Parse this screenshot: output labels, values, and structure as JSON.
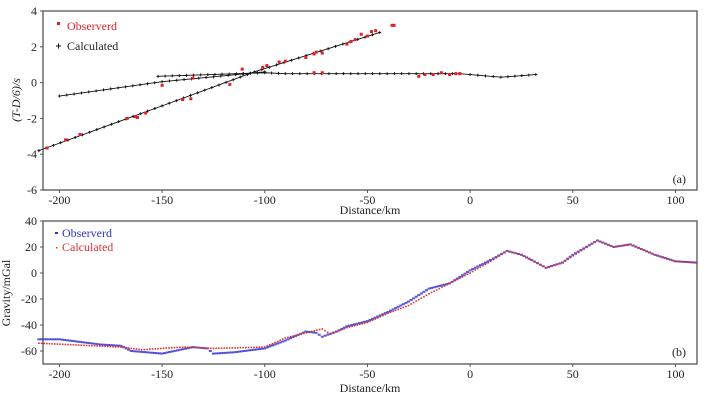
{
  "chart_data": [
    {
      "type": "scatter",
      "panel_label": "(a)",
      "xlabel": "Distance/km",
      "ylabel": "(T-D/6)/s",
      "xlim": [
        -208,
        110.5
      ],
      "ylim": [
        -6,
        4
      ],
      "xticks": [
        -200,
        -150,
        -100,
        -50,
        0,
        50,
        100
      ],
      "yticks": [
        -6,
        -4,
        -2,
        0,
        2,
        4
      ],
      "legend": {
        "placement": "top-left",
        "entries": [
          "Observerd",
          "Calculated"
        ]
      },
      "colors": {
        "observed": "#e0202a",
        "calculated": "#111111"
      },
      "observed": [
        [
          -206,
          -3.65
        ],
        [
          -197,
          -3.2
        ],
        [
          -190,
          -2.9
        ],
        [
          -167,
          -2.0
        ],
        [
          -163,
          -1.9
        ],
        [
          -162,
          -1.95
        ],
        [
          -158,
          -1.7
        ],
        [
          -150,
          -0.15
        ],
        [
          -140,
          -0.95
        ],
        [
          -136,
          -0.9
        ],
        [
          -135,
          0.25
        ],
        [
          -117,
          -0.1
        ],
        [
          -111,
          0.75
        ],
        [
          -101,
          0.85
        ],
        [
          -99,
          0.95
        ],
        [
          -93,
          1.15
        ],
        [
          -90,
          1.2
        ],
        [
          -80,
          1.4
        ],
        [
          -76,
          1.6
        ],
        [
          -75,
          1.7
        ],
        [
          -72,
          1.65
        ],
        [
          -76,
          0.55
        ],
        [
          -72,
          0.55
        ],
        [
          -60,
          2.15
        ],
        [
          -58,
          2.3
        ],
        [
          -56,
          2.4
        ],
        [
          -53,
          2.7
        ],
        [
          -50,
          2.6
        ],
        [
          -48,
          2.85
        ],
        [
          -46,
          2.9
        ],
        [
          -38,
          3.2
        ],
        [
          -37,
          3.2
        ],
        [
          -25,
          0.35
        ],
        [
          -22,
          0.45
        ],
        [
          -18,
          0.45
        ],
        [
          -14,
          0.55
        ],
        [
          -10,
          0.45
        ],
        [
          -7,
          0.5
        ],
        [
          -5,
          0.5
        ]
      ],
      "calculated": [
        {
          "name": "refraction-1",
          "points": [
            [
              -210,
              -3.8
            ],
            [
              -150,
              -1.3
            ],
            [
              -105,
              0.6
            ],
            [
              -44,
              2.8
            ]
          ]
        },
        {
          "name": "refraction-2",
          "points": [
            [
              -200,
              -0.75
            ],
            [
              -150,
              0.05
            ],
            [
              -100,
              0.6
            ]
          ]
        },
        {
          "name": "refraction-3",
          "points": [
            [
              -152,
              0.35
            ],
            [
              -100,
              0.55
            ],
            [
              -90,
              0.5
            ],
            [
              -5,
              0.5
            ],
            [
              0,
              0.45
            ],
            [
              15,
              0.3
            ],
            [
              32,
              0.45
            ]
          ]
        }
      ]
    },
    {
      "type": "line",
      "panel_label": "(b)",
      "xlabel": "Distance/km",
      "ylabel": "Gravity/mGal",
      "xlim": [
        -208,
        110.5
      ],
      "ylim": [
        -70,
        40
      ],
      "xticks": [
        -200,
        -150,
        -100,
        -50,
        0,
        50,
        100
      ],
      "yticks": [
        -60,
        -40,
        -20,
        0,
        20,
        40
      ],
      "legend": {
        "placement": "top-left",
        "entries": [
          "Observerd",
          "Calculated"
        ]
      },
      "colors": {
        "observed": "#3030d0",
        "calculated": "#e03030"
      },
      "series": [
        {
          "name": "Observerd",
          "points": [
            [
              -210,
              -51
            ],
            [
              -200,
              -51
            ],
            [
              -190,
              -53
            ],
            [
              -180,
              -55
            ],
            [
              -170,
              -56
            ],
            [
              -165,
              -60
            ],
            [
              -150,
              -62
            ],
            [
              -135,
              -57
            ],
            [
              -128,
              -58
            ],
            [
              -125,
              -62
            ],
            [
              -115,
              -61
            ],
            [
              -100,
              -58
            ],
            [
              -90,
              -52
            ],
            [
              -80,
              -45
            ],
            [
              -75,
              -46
            ],
            [
              -72,
              -49
            ],
            [
              -65,
              -45
            ],
            [
              -60,
              -41
            ],
            [
              -50,
              -37
            ],
            [
              -40,
              -30
            ],
            [
              -30,
              -22
            ],
            [
              -20,
              -12
            ],
            [
              -10,
              -8
            ],
            [
              0,
              2
            ],
            [
              10,
              10
            ],
            [
              18,
              17
            ],
            [
              25,
              14
            ],
            [
              30,
              10
            ],
            [
              37,
              4
            ],
            [
              45,
              8
            ],
            [
              50,
              14
            ],
            [
              62,
              25
            ],
            [
              70,
              20
            ],
            [
              78,
              22
            ],
            [
              90,
              14
            ],
            [
              100,
              9
            ],
            [
              110,
              8
            ]
          ]
        },
        {
          "name": "Calculated",
          "points": [
            [
              -210,
              -54
            ],
            [
              -170,
              -57
            ],
            [
              -160,
              -59
            ],
            [
              -140,
              -57
            ],
            [
              -125,
              -58
            ],
            [
              -100,
              -57
            ],
            [
              -90,
              -50
            ],
            [
              -72,
              -43
            ],
            [
              -68,
              -47
            ],
            [
              -60,
              -42
            ],
            [
              -50,
              -38
            ],
            [
              -40,
              -31
            ],
            [
              -30,
              -25
            ],
            [
              -20,
              -16
            ],
            [
              -10,
              -8
            ],
            [
              0,
              0
            ],
            [
              10,
              9
            ],
            [
              18,
              17
            ],
            [
              25,
              14
            ],
            [
              37,
              4
            ],
            [
              45,
              8
            ],
            [
              62,
              25
            ],
            [
              70,
              20
            ],
            [
              78,
              22
            ],
            [
              90,
              14
            ],
            [
              100,
              9
            ],
            [
              110,
              8
            ]
          ]
        }
      ]
    }
  ]
}
